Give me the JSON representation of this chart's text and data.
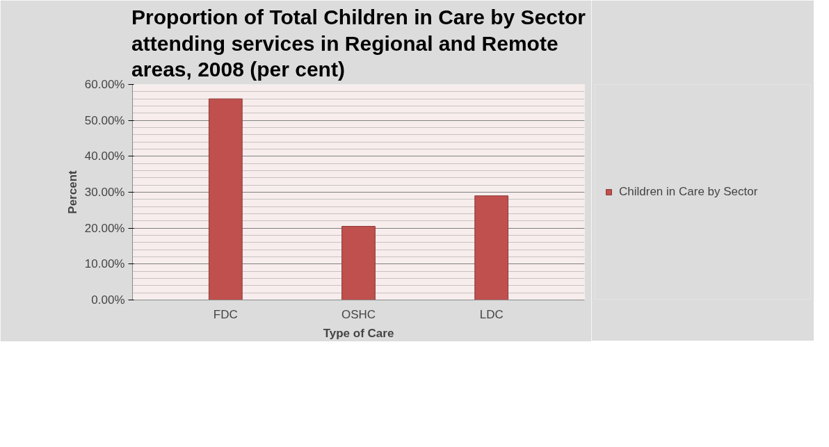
{
  "chart_data": {
    "type": "bar",
    "title": "Proportion of Total Children in Care by Sector attending services in Regional and Remote areas, 2008 (per cent)",
    "xlabel": "Type of Care",
    "ylabel": "Percent",
    "categories": [
      "FDC",
      "OSHC",
      "LDC"
    ],
    "series": [
      {
        "name": "Children in Care by Sector",
        "color": "#c0504d",
        "values": [
          56,
          20.5,
          29
        ]
      }
    ],
    "ylim": [
      0,
      60
    ],
    "yticks": [
      {
        "value": 0,
        "label": "0.00%"
      },
      {
        "value": 10,
        "label": "10.00%"
      },
      {
        "value": 20,
        "label": "20.00%"
      },
      {
        "value": 30,
        "label": "30.00%"
      },
      {
        "value": 40,
        "label": "40.00%"
      },
      {
        "value": 50,
        "label": "50.00%"
      },
      {
        "value": 60,
        "label": "60.00%"
      }
    ],
    "grid": "y",
    "legend": "right"
  }
}
